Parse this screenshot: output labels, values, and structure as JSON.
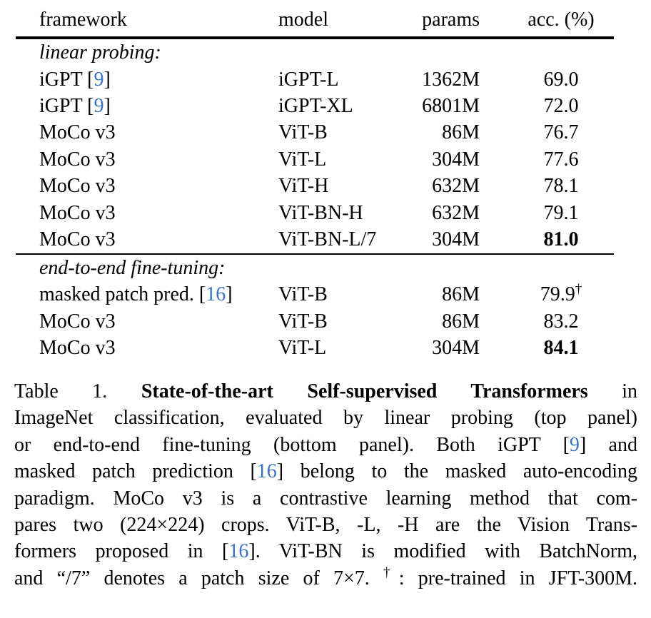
{
  "colors": {
    "text": "#000000",
    "citation": "#3b73c4",
    "rule": "#000000",
    "background": "#ffffff"
  },
  "table": {
    "headers": [
      "framework",
      "model",
      "params",
      "acc. (%)"
    ],
    "sections": [
      {
        "label": "linear probing:",
        "rows": [
          {
            "framework": [
              {
                "t": "iGPT [",
                "s": "n"
              },
              {
                "t": "9",
                "s": "c"
              },
              {
                "t": "]",
                "s": "n"
              }
            ],
            "model": "iGPT-L",
            "params": "1362M",
            "acc": [
              {
                "t": "69.0",
                "s": "n"
              }
            ]
          },
          {
            "framework": [
              {
                "t": "iGPT [",
                "s": "n"
              },
              {
                "t": "9",
                "s": "c"
              },
              {
                "t": "]",
                "s": "n"
              }
            ],
            "model": "iGPT-XL",
            "params": "6801M",
            "acc": [
              {
                "t": "72.0",
                "s": "n"
              }
            ]
          },
          {
            "framework": [
              {
                "t": "MoCo v3",
                "s": "n"
              }
            ],
            "model": "ViT-B",
            "params": "86M",
            "acc": [
              {
                "t": "76.7",
                "s": "n"
              }
            ]
          },
          {
            "framework": [
              {
                "t": "MoCo v3",
                "s": "n"
              }
            ],
            "model": "ViT-L",
            "params": "304M",
            "acc": [
              {
                "t": "77.6",
                "s": "n"
              }
            ]
          },
          {
            "framework": [
              {
                "t": "MoCo v3",
                "s": "n"
              }
            ],
            "model": "ViT-H",
            "params": "632M",
            "acc": [
              {
                "t": "78.1",
                "s": "n"
              }
            ]
          },
          {
            "framework": [
              {
                "t": "MoCo v3",
                "s": "n"
              }
            ],
            "model": "ViT-BN-H",
            "params": "632M",
            "acc": [
              {
                "t": "79.1",
                "s": "n"
              }
            ]
          },
          {
            "framework": [
              {
                "t": "MoCo v3",
                "s": "n"
              }
            ],
            "model": "ViT-BN-L/7",
            "params": "304M",
            "acc": [
              {
                "t": "81.0",
                "s": "b"
              }
            ]
          }
        ]
      },
      {
        "label": "end-to-end fine-tuning:",
        "rows": [
          {
            "framework": [
              {
                "t": "masked patch pred. [",
                "s": "n"
              },
              {
                "t": "16",
                "s": "c"
              },
              {
                "t": "]",
                "s": "n"
              }
            ],
            "model": "ViT-B",
            "params": "86M",
            "acc": [
              {
                "t": "79.9",
                "s": "n"
              },
              {
                "t": "†",
                "s": "sup"
              }
            ]
          },
          {
            "framework": [
              {
                "t": "MoCo v3",
                "s": "n"
              }
            ],
            "model": "ViT-B",
            "params": "86M",
            "acc": [
              {
                "t": "83.2",
                "s": "n"
              }
            ]
          },
          {
            "framework": [
              {
                "t": "MoCo v3",
                "s": "n"
              }
            ],
            "model": "ViT-L",
            "params": "304M",
            "acc": [
              {
                "t": "84.1",
                "s": "b"
              }
            ]
          }
        ]
      }
    ]
  },
  "caption": {
    "lines": [
      [
        {
          "t": "Table 1. ",
          "s": "n"
        },
        {
          "t": "State-of-the-art Self-supervised Transformers",
          "s": "b"
        },
        {
          "t": " in",
          "s": "n"
        }
      ],
      [
        {
          "t": "ImageNet classification, evaluated by linear probing (top panel)",
          "s": "n"
        }
      ],
      [
        {
          "t": "or end-to-end fine-tuning (bottom panel). Both iGPT [",
          "s": "n"
        },
        {
          "t": "9",
          "s": "c"
        },
        {
          "t": "] and",
          "s": "n"
        }
      ],
      [
        {
          "t": "masked patch prediction [",
          "s": "n"
        },
        {
          "t": "16",
          "s": "c"
        },
        {
          "t": "] belong to the masked auto-encoding",
          "s": "n"
        }
      ],
      [
        {
          "t": "paradigm. MoCo v3 is a contrastive learning method that com-",
          "s": "n"
        }
      ],
      [
        {
          "t": "pares two (224×224) crops. ViT-B, -L, -H are the Vision Trans-",
          "s": "n"
        }
      ],
      [
        {
          "t": "formers proposed in [",
          "s": "n"
        },
        {
          "t": "16",
          "s": "c"
        },
        {
          "t": "]. ViT-BN is modified with BatchNorm,",
          "s": "n"
        }
      ],
      [
        {
          "t": "and “/7” denotes a patch size of 7×7. ",
          "s": "n"
        },
        {
          "t": "†",
          "s": "sup"
        },
        {
          "t": ": pre-trained in JFT-300M.",
          "s": "n"
        }
      ]
    ]
  }
}
